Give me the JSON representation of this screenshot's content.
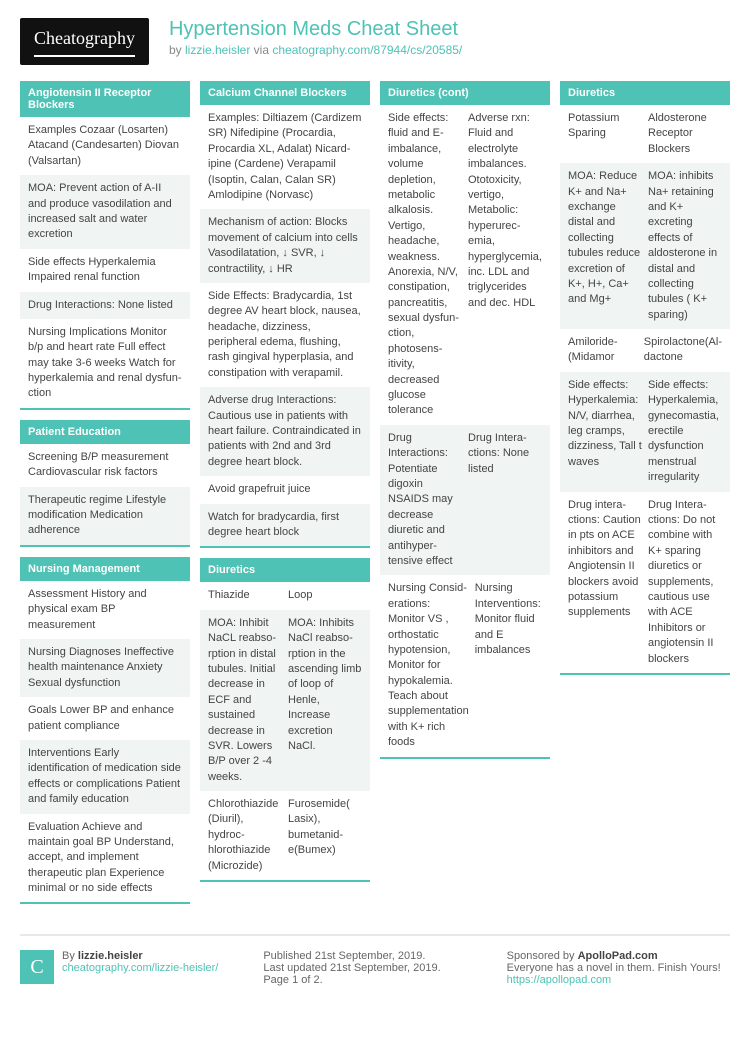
{
  "header": {
    "logo": "Cheatography",
    "title": "Hypertension Meds Cheat Sheet",
    "by": "by ",
    "author": "lizzie.heisler",
    "via": " via ",
    "url": "cheatography.com/87944/cs/20585/"
  },
  "col1": {
    "s1": {
      "title": "Angiotensin II Receptor Blockers",
      "r1": "Examples Cozaar (Losarten) Atacand (Candesarten) Diovan (Valsartan)",
      "r2": "MOA: Prevent action of A-II and produce vasodilation and increased salt and water excretion",
      "r3": "Side effects Hyperkalemia Impaired renal function",
      "r4": "Drug Interactions: None listed",
      "r5": "Nursing Implications Monitor b/p and heart rate Full effect may take 3-6 weeks Watch for hyperkalemia and renal dysfun­ction"
    },
    "s2": {
      "title": "Patient Education",
      "r1": "Screening B/P measurement Cardiovascular risk factors",
      "r2": "Therapeutic regime Lifestyle modification Medication adherence"
    },
    "s3": {
      "title": "Nursing Management",
      "r1": "Assessment History and physical exam BP measurement",
      "r2": "Nursing Diagnoses Ineffective health maintenance Anxiety Sexual dysfunction",
      "r3": "Goals Lower BP and enhance patient compliance",
      "r4": "Interventions Early identification of medication side effects or complications Patient and family education",
      "r5": "Evaluation Achieve and maintain goal BP Understand, accept, and implement therapeutic plan Experience minimal or no side effects"
    }
  },
  "col2": {
    "s1": {
      "title": "Calcium Channel Blockers",
      "r1": "Examples: Diltiazem (Cardizem SR) Nifedipine (Procardia, Procardia XL, Adalat) Nicard­ipine (Cardene) Verapamil (Isoptin, Calan, Calan SR) Amlodipine (Norvasc)",
      "r2": "Mechanism of action: Blocks movement of calcium into cells Vasodilatation, ↓ SVR, ↓ contractility, ↓ HR",
      "r3": "Side Effects: Bradycardia, 1st degree AV heart block, nausea, headache, dizziness, peripheral edema, flushing, rash gingival hyperplasia, and constipation with verapamil.",
      "r4": "Adverse drug Interactions: Cautious use in patients with heart failure. Contraindicated in patients with 2nd and 3rd degree heart block.",
      "r5": "Avoid grapefruit juice",
      "r6": "Watch for bradycardia, first degree heart block"
    },
    "s2": {
      "title": "Diuretics",
      "r1a": "Thiazide",
      "r1b": "Loop",
      "r2a": "MOA: Inhibit NaCL reabso­rption in distal tubules. Initial decrease in ECF and sustained decrease in SVR. Lowers B/P over 2 -4 weeks.",
      "r2b": "MOA: Inhibits NaCl reabso­rption in the ascending limb of loop of Henle, Increase excretion NaCl.",
      "r3a": "Chlorothiazide (Diuril), hydroc­hlorothiazide (Microzide)",
      "r3b": "Furose­mide( Lasix), bumetanid­e(Bumex)"
    }
  },
  "col3": {
    "s1": {
      "title": "Diuretics (cont)",
      "r1a": "Side effects: fluid and E-imbalance, volume depletion, metabolic alkalosis. Vertigo, headache, weakness. Anorexia, N/V, constipation, pancreatitis, sexual dysfun­ction, photosens­itivity, decreased glucose tolerance",
      "r1b": "Adverse rxn: Fluid and electr­olyte imbalances. Ototoxicity, vertigo, Metabolic: hyperurec­emia, hyperglyc­emia, inc. LDL and triglycerides and dec. HDL",
      "r2a": "Drug Interactions: Potentiate digoxin NSAIDS may decrease diuretic and antihyper­tensive effect",
      "r2b": "Drug Intera­ctions: None listed",
      "r3a": "Nursing Consid­erations: Monitor VS , orthostatic hypotension, Monitor for hypokalemia. Teach about supplementation with K+ rich foods",
      "r3b": "Nursing Intervent­ions: Monitor fluid and E imbalances"
    }
  },
  "col4": {
    "s1": {
      "title": "Diuretics",
      "r1a": "Potassium Sparing",
      "r1b": "Aldosterone Receptor Blockers",
      "r2a": "MOA: Reduce K+ and Na+ exchange distal and collecting tubules reduce excretion of K+, H+, Ca+ and Mg+",
      "r2b": "MOA: inhibits Na+ retaining and K+ excreting effects of aldosterone in distal and collecting tubules ( K+ sparing)",
      "r3a": "Amiloride­(Midamor",
      "r3b": "Spirolactone(Al­dactone",
      "r4a": "Side effects: Hyperk­alemia: N/V, diarrhea, leg cramps, dizziness, Tall t waves",
      "r4b": "Side effects: Hyperkalemia, gynecomastia, erectile dysfun­ction menstrual irregularity",
      "r5a": "Drug intera­ctions: Caution in pts on ACE inhibitors and Angiot­ensin II blockers avoid potassium supplements",
      "r5b": "Drug Intera­ctions: Do not combine with K+ sparing diuretics or supplements, cautious use with ACE Inhibitors or angiotensin II blockers"
    }
  },
  "footer": {
    "f1by": "By ",
    "f1author": "lizzie.heisler",
    "f1url": "cheatography.com/lizzie-heisler/",
    "f2l1": "Published 21st September, 2019.",
    "f2l2": "Last updated 21st September, 2019.",
    "f2l3": "Page 1 of 2.",
    "f3l1a": "Sponsored by ",
    "f3l1b": "ApolloPad.com",
    "f3l2": "Everyone has a novel in them. Finish Yours!",
    "f3url": "https://apollopad.com"
  },
  "colors": {
    "accent": "#4ec2b4"
  }
}
